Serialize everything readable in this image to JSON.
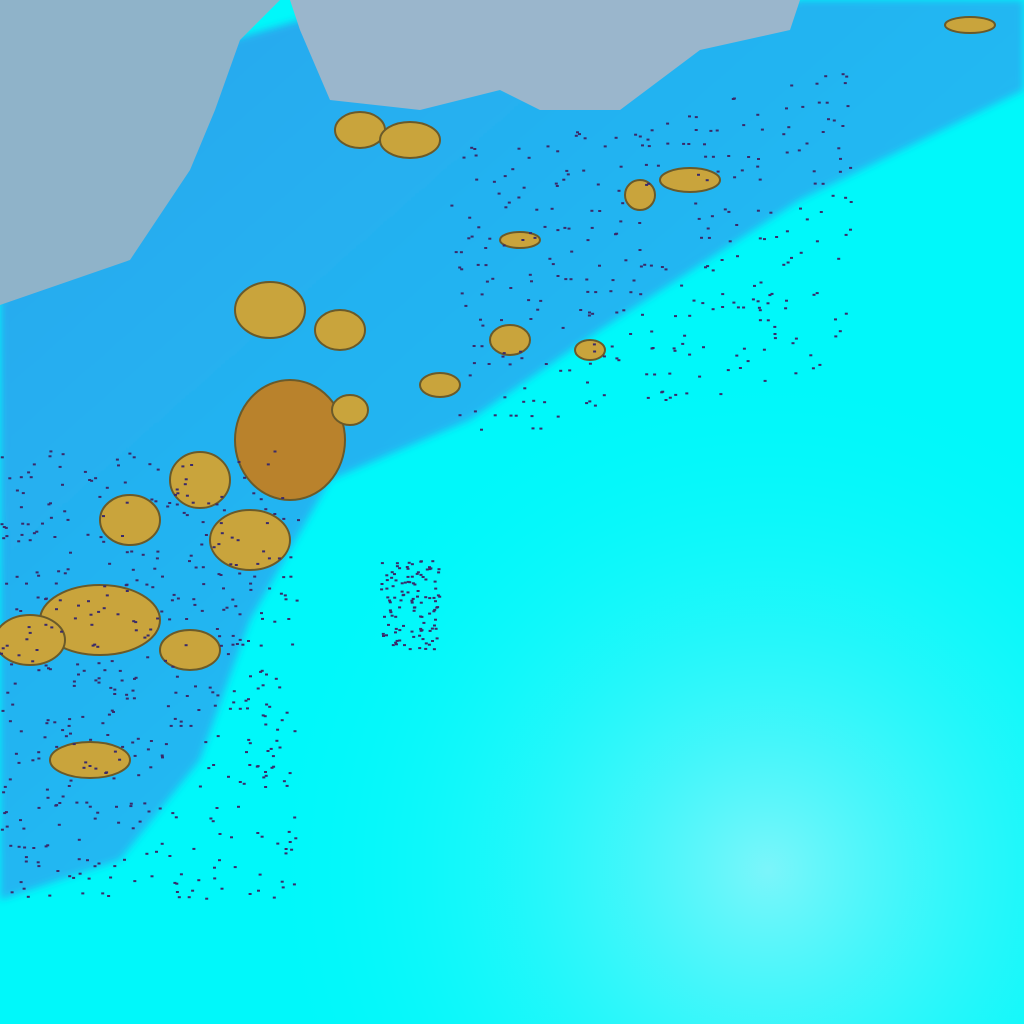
{
  "image": {
    "kind": "false-color satellite imagery",
    "colors": {
      "open_water": "#8fb3c9",
      "land_blue": "#1fb4f2",
      "snow_cyan": "#00f8fa",
      "bright_haze": "#7ff5fa",
      "cloud_gold": "#c9a43c",
      "cloud_core": "#b9822c",
      "speckle_dark": "#3a2a6a"
    }
  }
}
